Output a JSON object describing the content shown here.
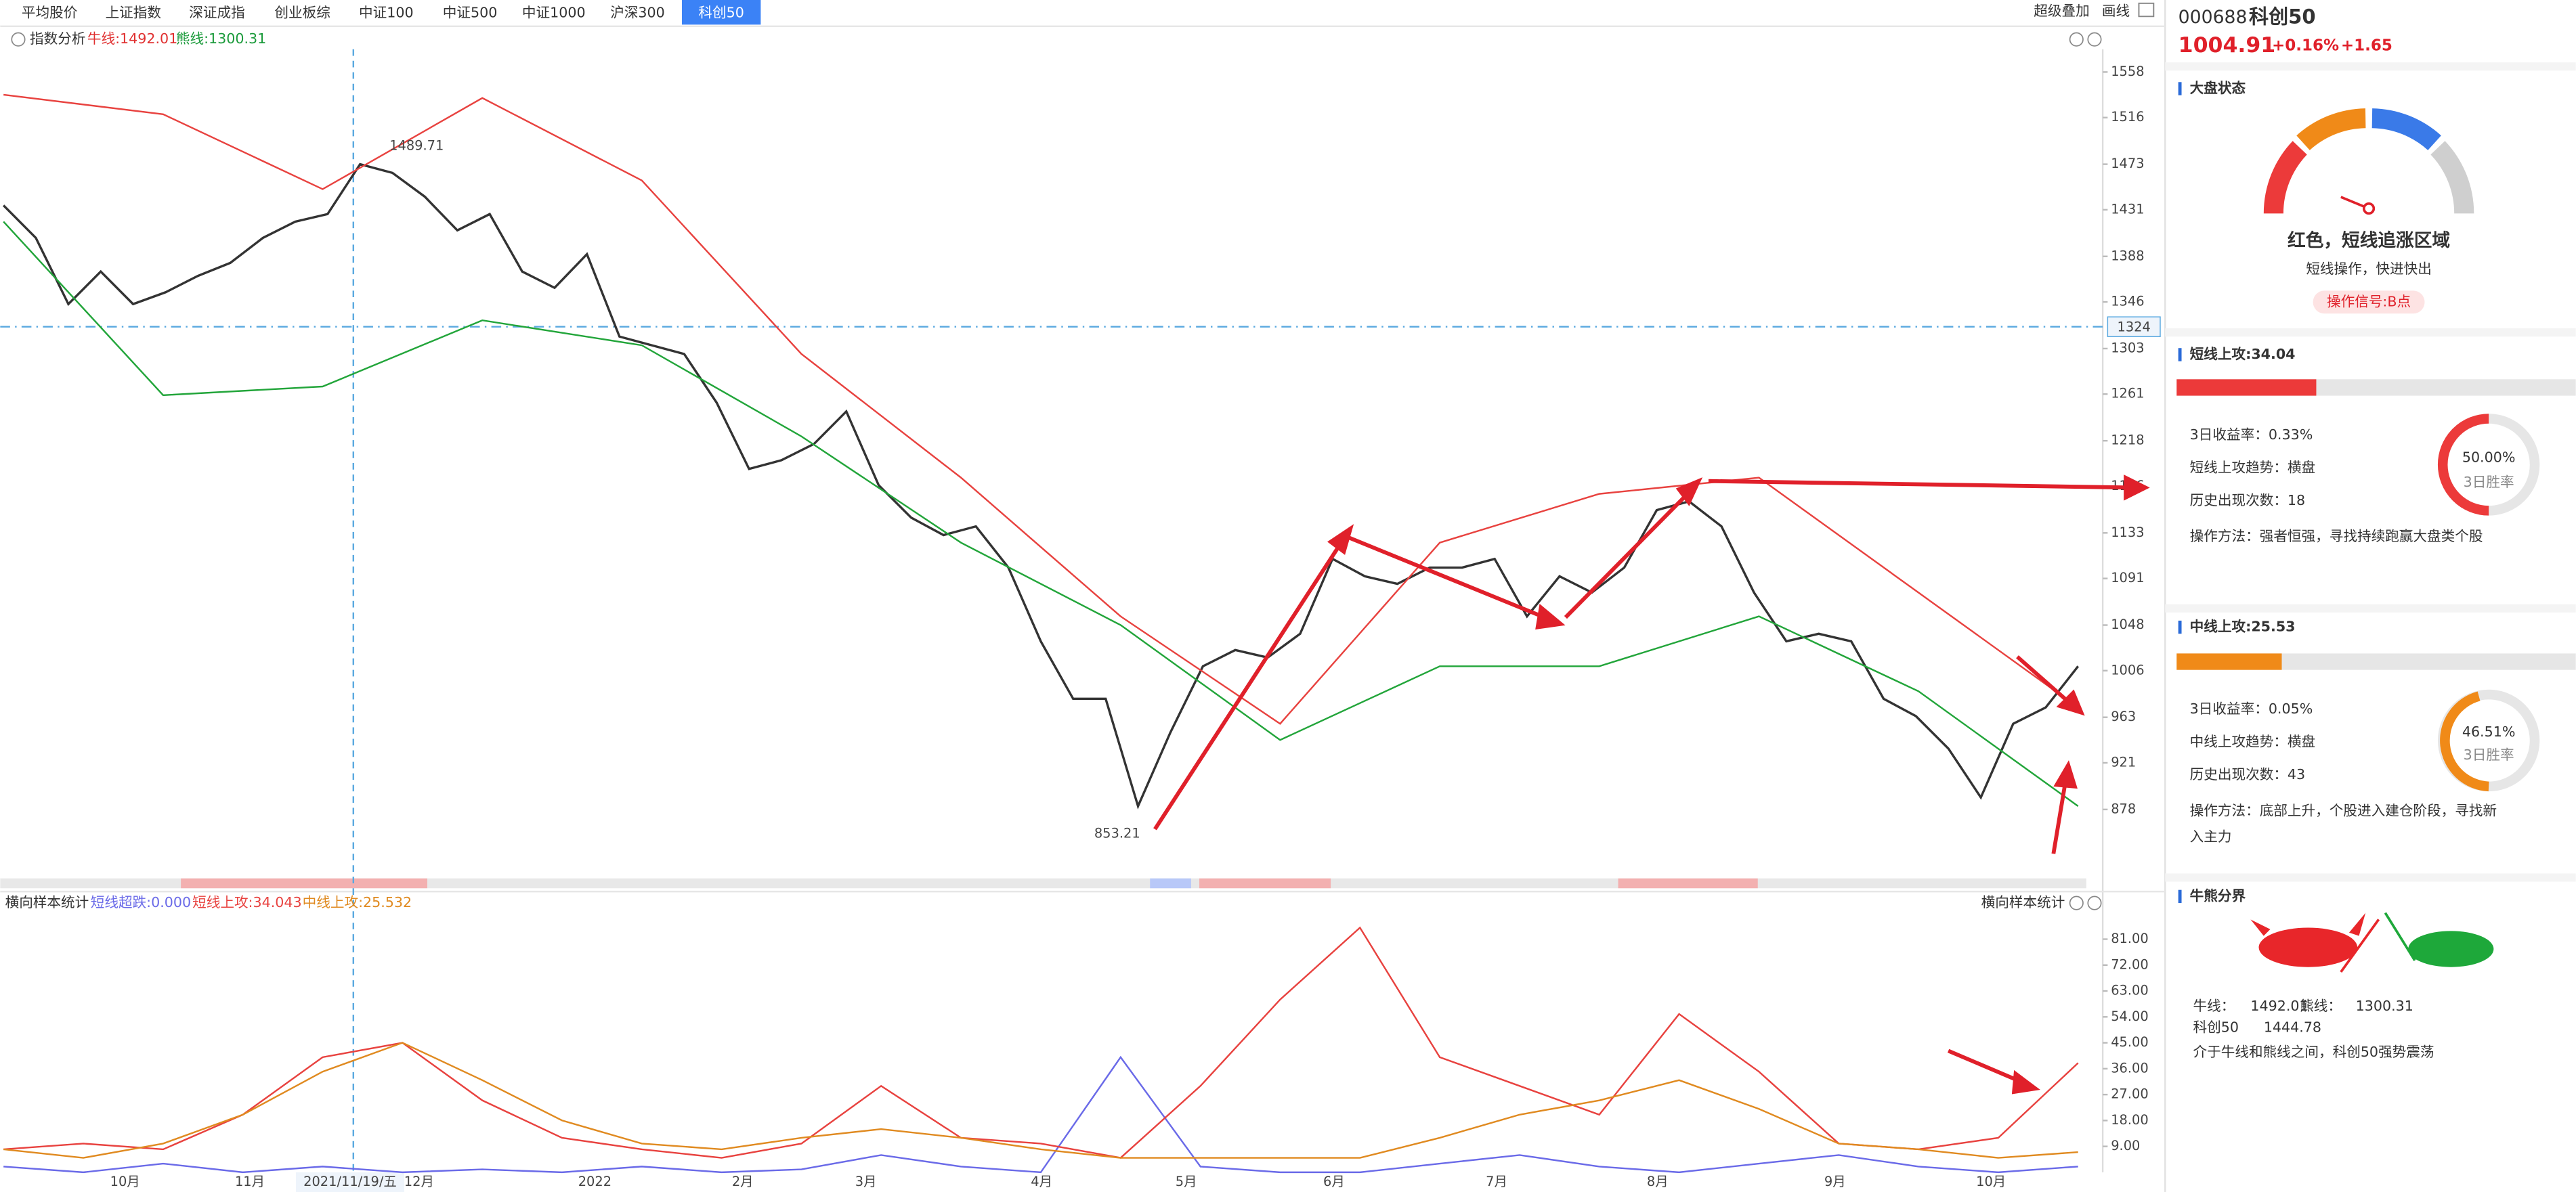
{
  "tabs": [
    "平均股价",
    "上证指数",
    "深证成指",
    "创业板综",
    "中证100",
    "中证500",
    "中证1000",
    "沪深300",
    "科创50"
  ],
  "active_tab": 8,
  "toolbar": [
    "超级叠加",
    "画线"
  ],
  "main_chart": {
    "type": "line",
    "legend_title": "指数分析",
    "legend": [
      {
        "text": "牛线:1492.01",
        "color": "#e03030"
      },
      {
        "text": "熊线:1300.31",
        "color": "#1a9a3a"
      }
    ],
    "series": [
      {
        "color": "#333333",
        "values": [
          1435,
          1405,
          1344,
          1374,
          1344,
          1355,
          1370,
          1382,
          1405,
          1420,
          1427,
          1473,
          1465,
          1443,
          1412,
          1427,
          1374,
          1359,
          1390,
          1314,
          1306,
          1298,
          1253,
          1192,
          1200,
          1215,
          1245,
          1177,
          1147,
          1131,
          1139,
          1101,
          1033,
          980,
          980,
          881,
          949,
          1010,
          1025,
          1018,
          1040,
          1109,
          1093,
          1086,
          1101,
          1101,
          1109,
          1056,
          1093,
          1078,
          1101,
          1154,
          1162,
          1139,
          1078,
          1033,
          1040,
          1033,
          980,
          964,
          934,
          889,
          957,
          972,
          1010
        ]
      },
      {
        "color": "#e8423f",
        "values": [
          1537,
          1519,
          1450,
          1534,
          1458,
          1298,
          1184,
          1056,
          957,
          1124,
          1169,
          1184,
          1078,
          972
        ]
      },
      {
        "color": "#22a53a",
        "values": [
          1420,
          1260,
          1268,
          1329,
          1306,
          1222,
          1124,
          1048,
          942,
          1010,
          1010,
          1056,
          987,
          881
        ]
      }
    ],
    "ylim": [
      822,
      1579
    ],
    "yticks": [
      1558,
      1516,
      1473,
      1431,
      1388,
      1346,
      1303,
      1261,
      1218,
      1176,
      1133,
      1091,
      1048,
      1006,
      963,
      921,
      878
    ],
    "annotations": [
      "1489.71",
      "853.21"
    ],
    "crosshair_price": "1324",
    "crosshair_date": "2021/11/19/五",
    "x_labels": [
      "10月",
      "11月",
      "12月",
      "2022",
      "2月",
      "3月",
      "4月",
      "5月",
      "6月",
      "7月",
      "8月",
      "9月",
      "10月"
    ]
  },
  "sub_chart": {
    "type": "line",
    "title": "横向样本统计",
    "right_title": "横向样本统计",
    "legend": [
      {
        "text": "短线超跌:0.000",
        "color": "#6a6ae8"
      },
      {
        "text": "短线上攻:34.043",
        "color": "#e8423f"
      },
      {
        "text": "中线上攻:25.532",
        "color": "#e08a20"
      }
    ],
    "series": [
      {
        "color": "#6a6ae8",
        "values": [
          2,
          0,
          3,
          0,
          2,
          0,
          1,
          0,
          2,
          0,
          1,
          6,
          2,
          0,
          40,
          2,
          0,
          0,
          3,
          6,
          2,
          0,
          3,
          6,
          2,
          0,
          2
        ]
      },
      {
        "color": "#e8423f",
        "values": [
          8,
          10,
          8,
          20,
          40,
          45,
          25,
          12,
          8,
          5,
          10,
          30,
          12,
          10,
          5,
          30,
          60,
          85,
          40,
          30,
          20,
          55,
          35,
          10,
          8,
          12,
          38
        ]
      },
      {
        "color": "#e08a20",
        "values": [
          8,
          5,
          10,
          20,
          35,
          45,
          32,
          18,
          10,
          8,
          12,
          15,
          12,
          8,
          5,
          5,
          5,
          5,
          12,
          20,
          25,
          32,
          22,
          10,
          8,
          5,
          7
        ]
      }
    ],
    "ylim": [
      0,
      89
    ],
    "yticks": [
      {
        "value": 81,
        "label": "81.00"
      },
      {
        "value": 72,
        "label": "72.00"
      },
      {
        "value": 63,
        "label": "63.00"
      },
      {
        "value": 54,
        "label": "54.00"
      },
      {
        "value": 45,
        "label": "45.00"
      },
      {
        "value": 36,
        "label": "36.00"
      },
      {
        "value": 27,
        "label": "27.00"
      },
      {
        "value": 18,
        "label": "18.00"
      },
      {
        "value": 9,
        "label": "9.00"
      }
    ]
  },
  "side": {
    "code": "000688",
    "name": "科创50",
    "price": "1004.91",
    "pct": "+0.16%",
    "chg": "+1.65",
    "market": {
      "title": "大盘状态",
      "status": "红色，短线追涨区域",
      "advice": "短线操作，快进快出",
      "signal": "操作信号:B点"
    },
    "short": {
      "title": "短线上攻:34.04",
      "lines": [
        "3日收益率：0.33%",
        "短线上攻趋势：横盘",
        "历史出现次数：18",
        "操作方法：强者恒强，寻找持续跑赢大盘类个股"
      ],
      "rate": "50.00%",
      "rate_label": "3日胜率"
    },
    "mid": {
      "title": "中线上攻:25.53",
      "lines": [
        "3日收益率：0.05%",
        "中线上攻趋势：横盘",
        "历史出现次数：43",
        "操作方法：底部上升，个股进入建仓阶段，寻找新",
        "入主力"
      ],
      "rate": "46.51%",
      "rate_label": "3日胜率"
    },
    "bullbear": {
      "title": "牛熊分界",
      "items": [
        "牛线：",
        "1492.01",
        "熊线：",
        "1300.31",
        "科创50",
        "1444.78"
      ],
      "summary": "介于牛线和熊线之间，科创50强势震荡"
    }
  }
}
